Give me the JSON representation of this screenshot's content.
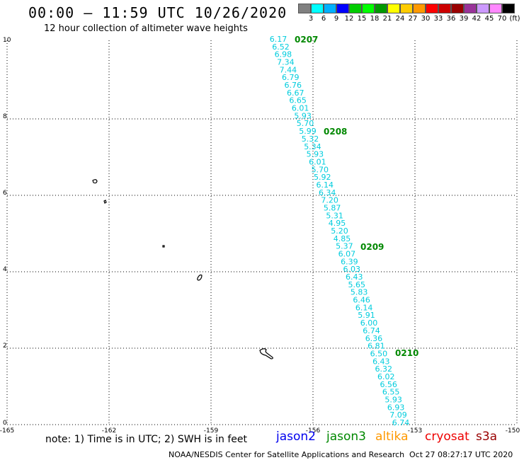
{
  "title": "00:00 – 11:59 UTC 10/26/2020",
  "subtitle": "12 hour collection of altimeter wave heights",
  "scale": {
    "labels": [
      "3",
      "6",
      "9",
      "12",
      "15",
      "18",
      "21",
      "24",
      "27",
      "30",
      "33",
      "36",
      "39",
      "42",
      "45",
      "70",
      "(ft)"
    ],
    "colors": [
      "#808080",
      "#00ffff",
      "#00b0ff",
      "#0000ff",
      "#00cc00",
      "#00ff00",
      "#009900",
      "#ffff00",
      "#ffcc00",
      "#ff9900",
      "#ff0000",
      "#cc0000",
      "#990000",
      "#993399",
      "#cc99ff",
      "#ff88ff",
      "#000000"
    ]
  },
  "axes": {
    "x_ticks": [
      "-165",
      "-162",
      "-159",
      "-156",
      "-153",
      "-150"
    ],
    "y_ticks": [
      "0",
      "2",
      "4",
      "6",
      "8",
      "10"
    ]
  },
  "track": {
    "color": "#00ccdd",
    "values": [
      "6.17",
      "6.52",
      "6.98",
      "7.34",
      "7.44",
      "6.79",
      "6.76",
      "6.67",
      "6.65",
      "6.01",
      "5.93",
      "5.70",
      "5.99",
      "5.32",
      "5.34",
      "5.93",
      "6.01",
      "5.70",
      "5.92",
      "6.14",
      "6.34",
      "7.20",
      "5.87",
      "5.31",
      "4.95",
      "5.20",
      "4.85",
      "5.37",
      "6.07",
      "6.39",
      "6.03",
      "6.43",
      "5.65",
      "5.83",
      "6.46",
      "6.14",
      "5.91",
      "6.00",
      "6.74",
      "6.36",
      "6.81",
      "6.50",
      "6.43",
      "6.32",
      "6.02",
      "6.56",
      "6.55",
      "5.93",
      "6.93",
      "7.09",
      "6.74"
    ]
  },
  "times": {
    "color": "#008800",
    "labels": [
      "0207",
      "0208",
      "0209",
      "0210"
    ]
  },
  "note": "note:  1) Time is in UTC;  2) SWH is in feet",
  "legend": [
    {
      "name": "jason2",
      "color": "#0000ee"
    },
    {
      "name": "jason3",
      "color": "#008800"
    },
    {
      "name": "altika",
      "color": "#ff9900"
    },
    {
      "name": "cryosat",
      "color": "#ee0000"
    },
    {
      "name": "s3a",
      "color": "#990000"
    }
  ],
  "credit": "NOAA/NESDIS Center for Satellite Applications and Research",
  "timestamp": "Oct 27 08:27:17 UTC 2020"
}
